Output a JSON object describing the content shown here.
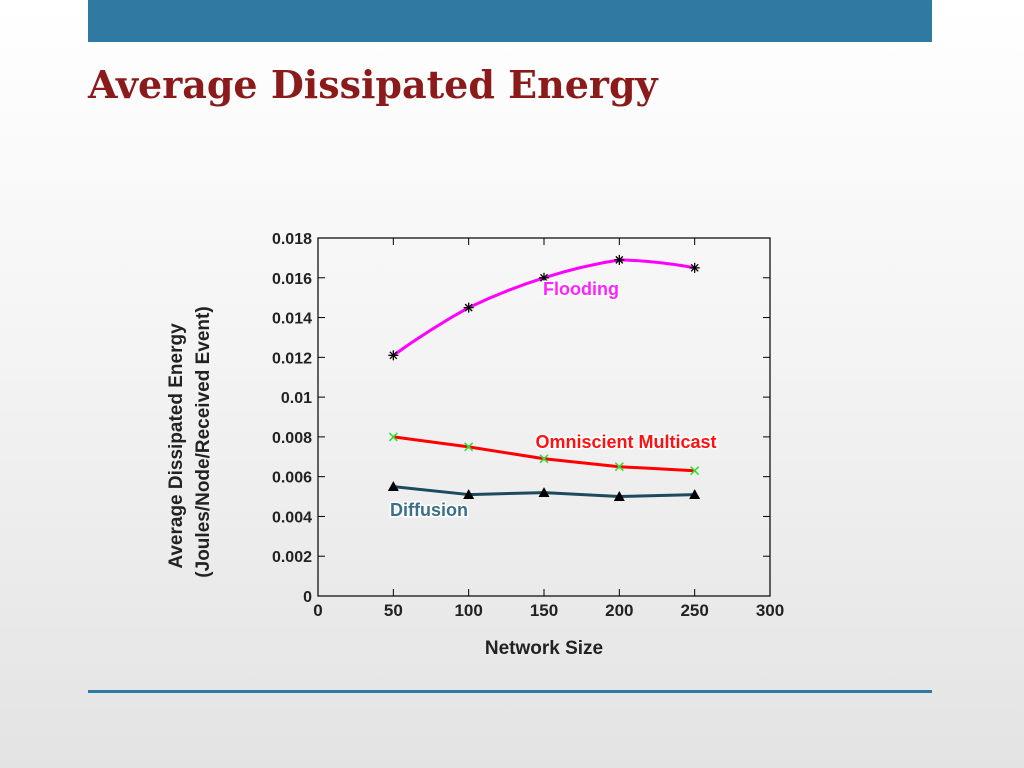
{
  "slide": {
    "title": "Average Dissipated Energy"
  },
  "colors": {
    "top_bar": "#2f7aa3",
    "title": "#8b1a1a",
    "rule": "#2f7aa3"
  },
  "chart_data": {
    "type": "line",
    "xlabel": "Network Size",
    "ylabel_line1": "Average Dissipated Energy",
    "ylabel_line2": "(Joules/Node/Received Event)",
    "xlim": [
      0,
      300
    ],
    "ylim": [
      0,
      0.018
    ],
    "x_ticks": [
      "0",
      "50",
      "100",
      "150",
      "200",
      "250",
      "300"
    ],
    "y_ticks": [
      "0",
      "0.002",
      "0.004",
      "0.006",
      "0.008",
      "0.01",
      "0.012",
      "0.014",
      "0.016",
      "0.018"
    ],
    "grid": false,
    "series": [
      {
        "name": "Flooding",
        "color": "#ff00ff",
        "marker": "asterisk",
        "marker_color": "#000000",
        "x": [
          50,
          100,
          150,
          200,
          250
        ],
        "y": [
          0.0121,
          0.0145,
          0.016,
          0.0169,
          0.0165
        ]
      },
      {
        "name": "Omniscient Multicast",
        "color": "#ff0000",
        "marker": "x",
        "marker_color": "#33dd33",
        "x": [
          50,
          100,
          150,
          200,
          250
        ],
        "y": [
          0.008,
          0.0075,
          0.0069,
          0.0065,
          0.0063
        ]
      },
      {
        "name": "Diffusion",
        "color": "#1d4a5e",
        "marker": "triangle",
        "marker_color": "#000000",
        "x": [
          50,
          100,
          150,
          200,
          250
        ],
        "y": [
          0.0055,
          0.0051,
          0.0052,
          0.005,
          0.0051
        ]
      }
    ]
  }
}
